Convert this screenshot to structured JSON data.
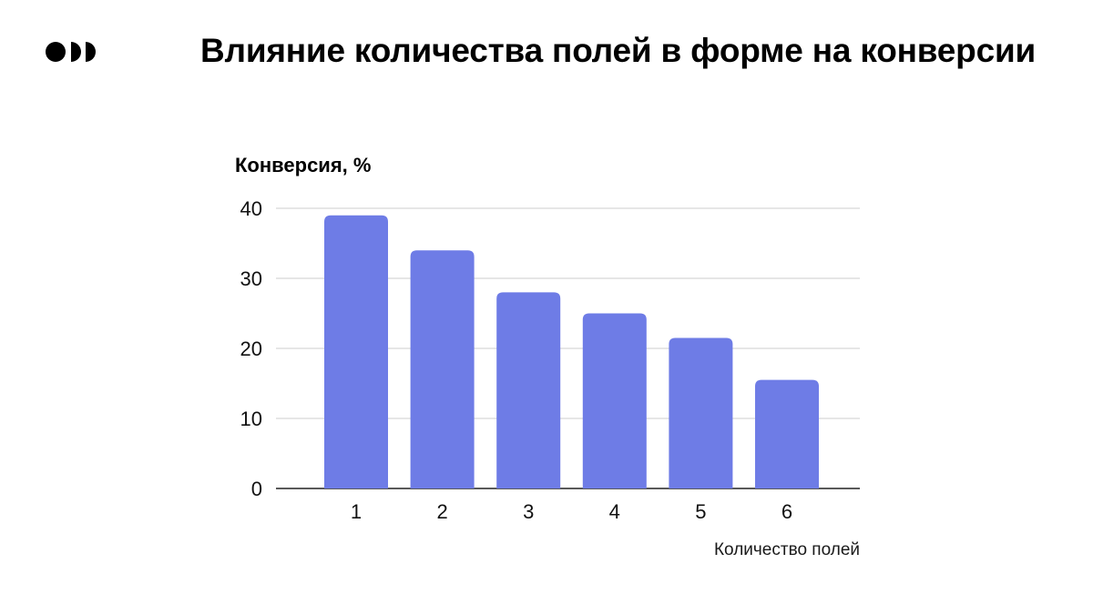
{
  "header": {
    "title": "Влияние количества полей в форме на конверсии",
    "logo_icon": "three-dots-logo-icon"
  },
  "colors": {
    "bar": "#6e7ce6",
    "grid": "#cccccc",
    "axis": "#222222",
    "text": "#000000"
  },
  "chart_data": {
    "type": "bar",
    "title": "",
    "xlabel": "Количество полей",
    "ylabel": "Конверсия, %",
    "categories": [
      "1",
      "2",
      "3",
      "4",
      "5",
      "6"
    ],
    "values": [
      39,
      34,
      28,
      25,
      21.5,
      15.5
    ],
    "ylim": [
      0,
      40
    ],
    "yticks": [
      "0",
      "10",
      "20",
      "30",
      "40"
    ],
    "grid": true,
    "legend": "none"
  }
}
